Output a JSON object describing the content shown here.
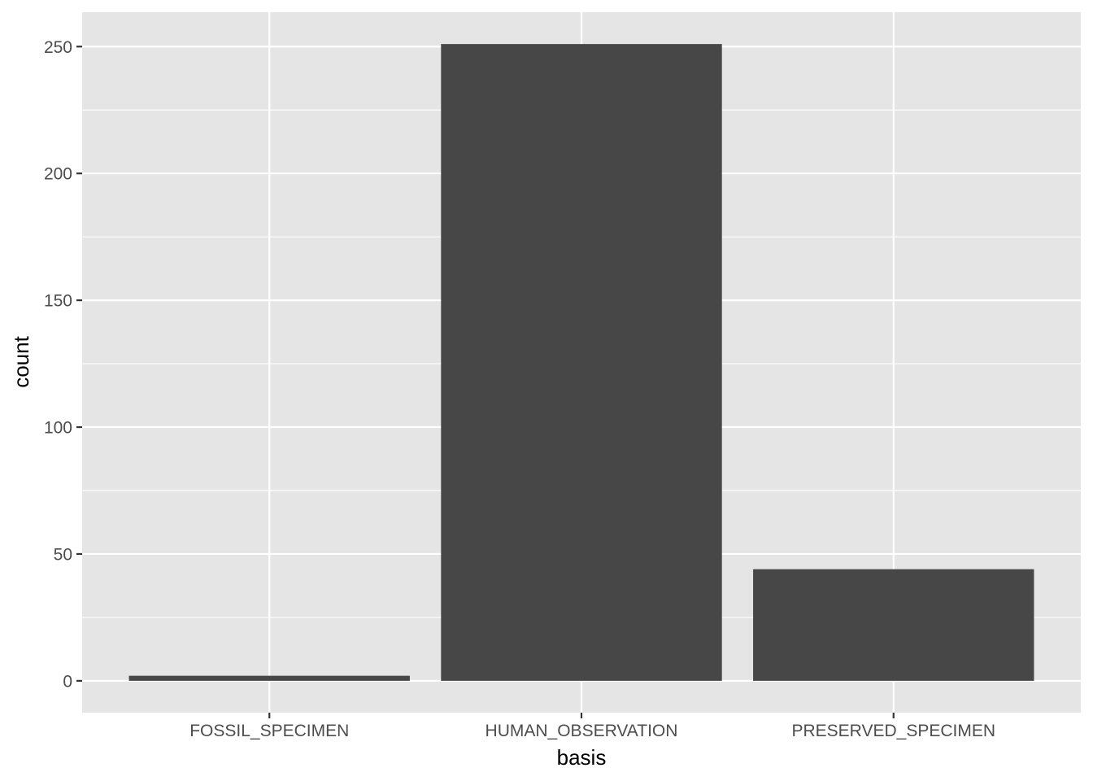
{
  "chart_data": {
    "type": "bar",
    "title": "",
    "xlabel": "basis",
    "ylabel": "count",
    "categories": [
      "FOSSIL_SPECIMEN",
      "HUMAN_OBSERVATION",
      "PRESERVED_SPECIMEN"
    ],
    "values": [
      2,
      251,
      44
    ],
    "ylim": [
      -12.55,
      263.55
    ],
    "yticks": [
      0,
      50,
      100,
      150,
      200,
      250
    ],
    "ytick_labels": [
      "0",
      "50",
      "100",
      "150",
      "200",
      "250"
    ],
    "grid": true,
    "legend": "none",
    "colors": {
      "bar": "#474747",
      "panel": "#e5e5e5",
      "grid": "#ffffff",
      "axis_text": "#4d4d4d",
      "tick": "#333333"
    }
  }
}
